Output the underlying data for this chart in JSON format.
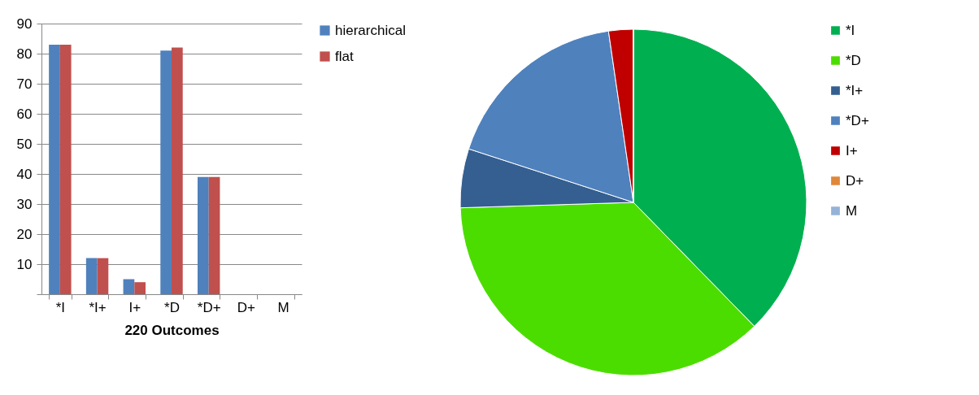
{
  "chart_data": [
    {
      "type": "bar",
      "xlabel": "220 Outcomes",
      "categories": [
        "*I",
        "*I+",
        "I+",
        "*D",
        "*D+",
        "D+",
        "M"
      ],
      "series": [
        {
          "name": "hierarchical",
          "color": "#4f81bd",
          "values": [
            83,
            12,
            5,
            81,
            39,
            0,
            0
          ]
        },
        {
          "name": "flat",
          "color": "#c0504d",
          "values": [
            83,
            12,
            4,
            82,
            39,
            0,
            0
          ]
        }
      ],
      "ylim": [
        0,
        90
      ],
      "yticks": [
        {
          "value": 0,
          "label": null
        },
        10,
        20,
        30,
        40,
        50,
        60,
        70,
        80,
        90
      ],
      "grid": "y",
      "legend": "right"
    },
    {
      "type": "pie",
      "categories": [
        "*I",
        "*D",
        "*I+",
        "*D+",
        "I+",
        "D+",
        "M"
      ],
      "values": [
        37.7,
        36.8,
        5.5,
        17.7,
        2.3,
        0,
        0
      ],
      "colors": [
        "#00b050",
        "#4cdd00",
        "#355f91",
        "#4f81bd",
        "#c00000",
        "#e0873a",
        "#95b3d7"
      ],
      "legend": "right"
    }
  ]
}
